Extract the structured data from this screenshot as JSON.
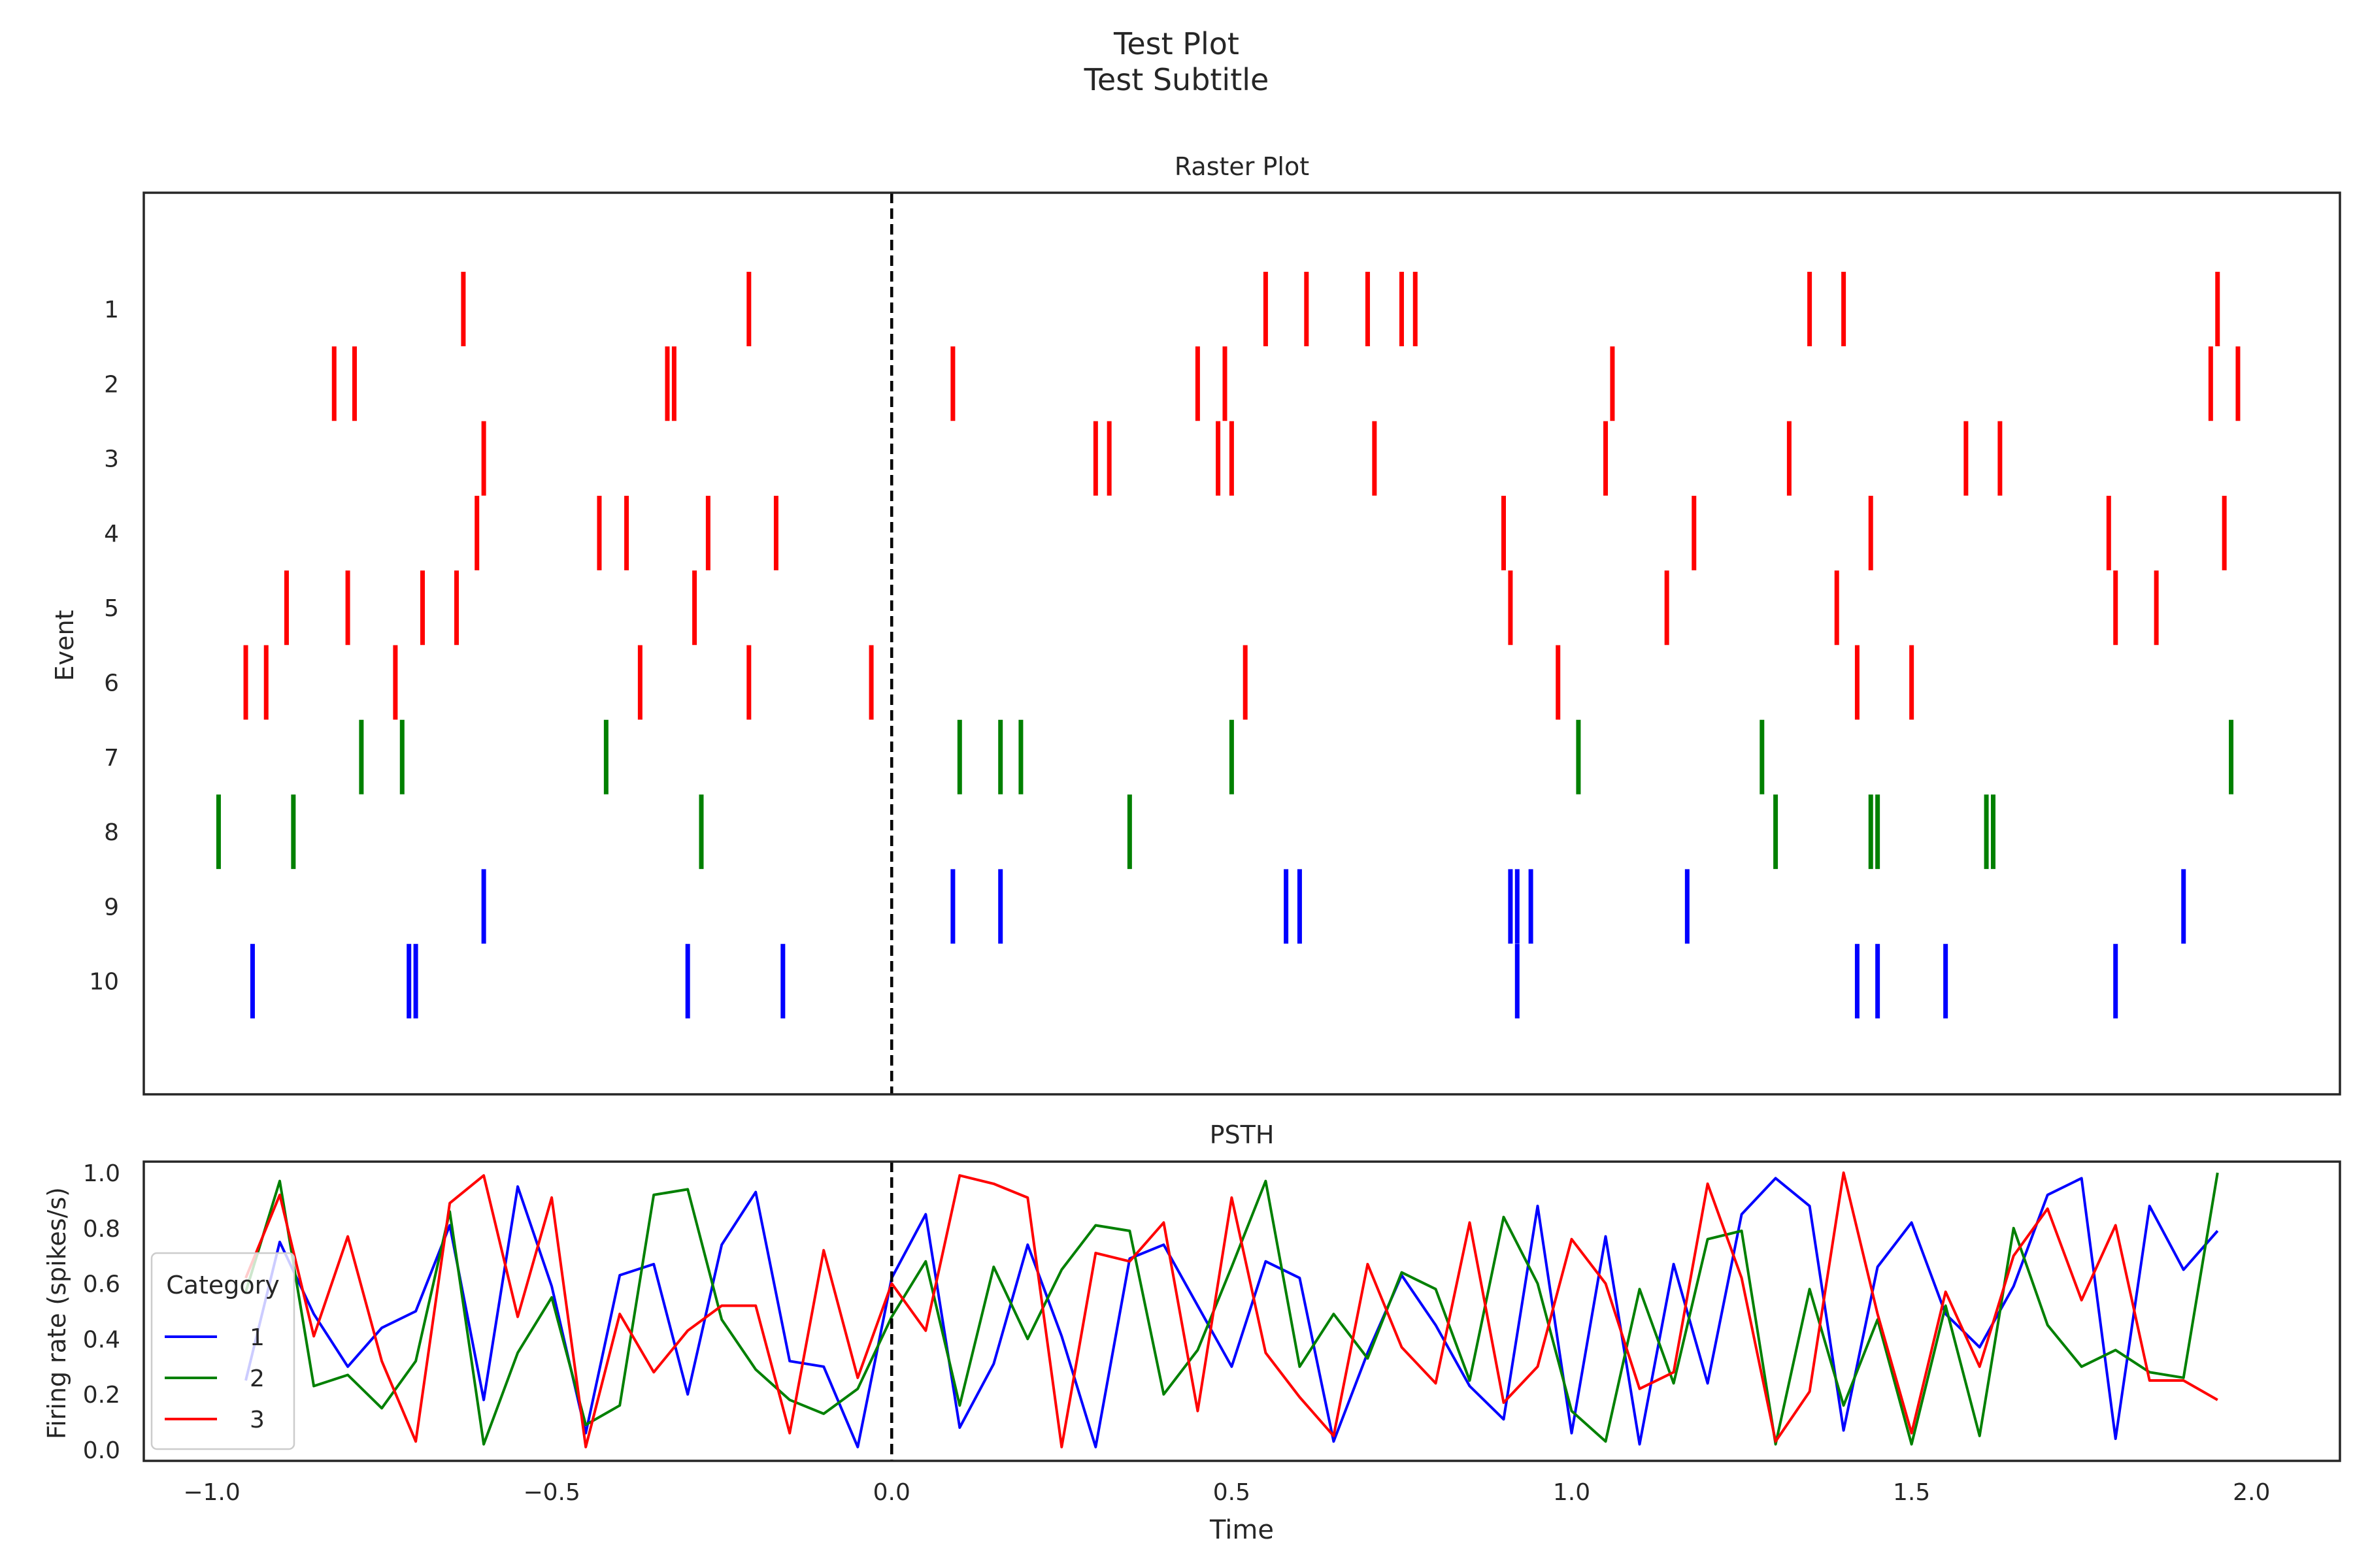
{
  "figure": {
    "title": "Test Plot",
    "subtitle": "Test Subtitle"
  },
  "chart_data": [
    {
      "type": "raster",
      "title": "Raster Plot",
      "xlabel": "",
      "ylabel": "Event",
      "xlim": [
        -1.1,
        2.13
      ],
      "event_line_x": 0.0,
      "grid": false,
      "colors": {
        "1": "#0000ff",
        "2": "#008000",
        "3": "#ff0000"
      },
      "events": [
        {
          "label": "1",
          "category": "3",
          "spikes": [
            -0.63,
            -0.21,
            0.55,
            0.61,
            0.7,
            0.75,
            0.77,
            1.35,
            1.4,
            1.95
          ]
        },
        {
          "label": "2",
          "category": "3",
          "spikes": [
            -0.82,
            -0.79,
            -0.33,
            -0.32,
            0.09,
            0.45,
            0.49,
            1.06,
            1.94,
            1.98
          ]
        },
        {
          "label": "3",
          "category": "3",
          "spikes": [
            -0.6,
            0.3,
            0.32,
            0.48,
            0.5,
            0.71,
            1.05,
            1.32,
            1.58,
            1.63
          ]
        },
        {
          "label": "4",
          "category": "3",
          "spikes": [
            -0.61,
            -0.43,
            -0.39,
            -0.27,
            -0.17,
            0.9,
            1.18,
            1.44,
            1.79,
            1.96
          ]
        },
        {
          "label": "5",
          "category": "3",
          "spikes": [
            -0.89,
            -0.8,
            -0.69,
            -0.64,
            -0.29,
            0.91,
            1.14,
            1.39,
            1.8,
            1.86
          ]
        },
        {
          "label": "6",
          "category": "3",
          "spikes": [
            -0.95,
            -0.92,
            -0.73,
            -0.37,
            -0.21,
            -0.03,
            0.52,
            0.98,
            1.42,
            1.5
          ]
        },
        {
          "label": "7",
          "category": "2",
          "spikes": [
            -0.78,
            -0.72,
            -0.42,
            0.1,
            0.16,
            0.19,
            0.5,
            1.01,
            1.28,
            1.97
          ]
        },
        {
          "label": "8",
          "category": "2",
          "spikes": [
            -0.99,
            -0.88,
            -0.28,
            0.35,
            1.3,
            1.44,
            1.45,
            1.61,
            1.62
          ]
        },
        {
          "label": "9",
          "category": "1",
          "spikes": [
            -0.6,
            0.09,
            0.16,
            0.58,
            0.6,
            0.91,
            0.92,
            0.94,
            1.17,
            1.9
          ]
        },
        {
          "label": "10",
          "category": "1",
          "spikes": [
            -0.94,
            -0.71,
            -0.7,
            -0.3,
            -0.16,
            0.92,
            1.42,
            1.45,
            1.55,
            1.8
          ]
        }
      ]
    },
    {
      "type": "line",
      "title": "PSTH",
      "xlabel": "Time",
      "ylabel": "Firing rate (spikes/s)",
      "xlim": [
        -1.1,
        2.13
      ],
      "ylim": [
        -0.04,
        1.04
      ],
      "event_line_x": 0.0,
      "grid": false,
      "xticks": [
        -1.0,
        -0.5,
        0.0,
        0.5,
        1.0,
        1.5,
        2.0
      ],
      "xtick_labels": [
        "−1.0",
        "−0.5",
        "0.0",
        "0.5",
        "1.0",
        "1.5",
        "2.0"
      ],
      "yticks": [
        0.0,
        0.2,
        0.4,
        0.6,
        0.8,
        1.0
      ],
      "ytick_labels": [
        "0.0",
        "0.2",
        "0.4",
        "0.6",
        "0.8",
        "1.0"
      ],
      "legend": {
        "title": "Category",
        "position": "lower-left"
      },
      "x": [
        -0.95,
        -0.9,
        -0.85,
        -0.8,
        -0.75,
        -0.7,
        -0.65,
        -0.6,
        -0.55,
        -0.5,
        -0.45,
        -0.4,
        -0.35,
        -0.3,
        -0.25,
        -0.2,
        -0.15,
        -0.1,
        -0.05,
        0.0,
        0.05,
        0.1,
        0.15,
        0.2,
        0.25,
        0.3,
        0.35,
        0.4,
        0.45,
        0.5,
        0.55,
        0.6,
        0.65,
        0.7,
        0.75,
        0.8,
        0.85,
        0.9,
        0.95,
        1.0,
        1.05,
        1.1,
        1.15,
        1.2,
        1.25,
        1.3,
        1.35,
        1.4,
        1.45,
        1.5,
        1.55,
        1.6,
        1.65,
        1.7,
        1.75,
        1.8,
        1.85,
        1.9,
        1.95
      ],
      "series": [
        {
          "name": "1",
          "color": "#0000ff",
          "values": [
            0.25,
            0.75,
            0.49,
            0.3,
            0.44,
            0.5,
            0.81,
            0.18,
            0.95,
            0.59,
            0.06,
            0.63,
            0.67,
            0.2,
            0.74,
            0.93,
            0.32,
            0.3,
            0.01,
            0.62,
            0.85,
            0.08,
            0.31,
            0.74,
            0.41,
            0.01,
            0.69,
            0.74,
            0.52,
            0.3,
            0.68,
            0.62,
            0.03,
            0.35,
            0.63,
            0.45,
            0.23,
            0.11,
            0.88,
            0.06,
            0.77,
            0.02,
            0.67,
            0.24,
            0.85,
            0.98,
            0.88,
            0.07,
            0.66,
            0.82,
            0.49,
            0.37,
            0.59,
            0.92,
            0.98,
            0.04,
            0.88,
            0.65,
            0.79
          ]
        },
        {
          "name": "2",
          "color": "#008000",
          "values": [
            0.57,
            0.97,
            0.23,
            0.27,
            0.15,
            0.32,
            0.86,
            0.02,
            0.35,
            0.55,
            0.09,
            0.16,
            0.92,
            0.94,
            0.47,
            0.29,
            0.18,
            0.13,
            0.22,
            0.48,
            0.68,
            0.16,
            0.66,
            0.4,
            0.65,
            0.81,
            0.79,
            0.2,
            0.36,
            0.66,
            0.97,
            0.3,
            0.49,
            0.33,
            0.64,
            0.58,
            0.25,
            0.84,
            0.6,
            0.14,
            0.03,
            0.58,
            0.24,
            0.76,
            0.79,
            0.02,
            0.58,
            0.16,
            0.47,
            0.02,
            0.52,
            0.05,
            0.8,
            0.45,
            0.3,
            0.36,
            0.28,
            0.26,
            1.0
          ]
        },
        {
          "name": "3",
          "color": "#ff0000",
          "values": [
            0.62,
            0.92,
            0.41,
            0.77,
            0.32,
            0.03,
            0.89,
            0.99,
            0.48,
            0.91,
            0.01,
            0.49,
            0.28,
            0.43,
            0.52,
            0.52,
            0.06,
            0.72,
            0.26,
            0.6,
            0.43,
            0.99,
            0.96,
            0.91,
            0.01,
            0.71,
            0.68,
            0.82,
            0.14,
            0.91,
            0.35,
            0.19,
            0.05,
            0.67,
            0.37,
            0.24,
            0.82,
            0.17,
            0.3,
            0.76,
            0.6,
            0.22,
            0.28,
            0.96,
            0.62,
            0.03,
            0.21,
            1.0,
            0.49,
            0.06,
            0.57,
            0.3,
            0.7,
            0.87,
            0.54,
            0.81,
            0.25,
            0.25,
            0.18
          ]
        }
      ]
    }
  ]
}
